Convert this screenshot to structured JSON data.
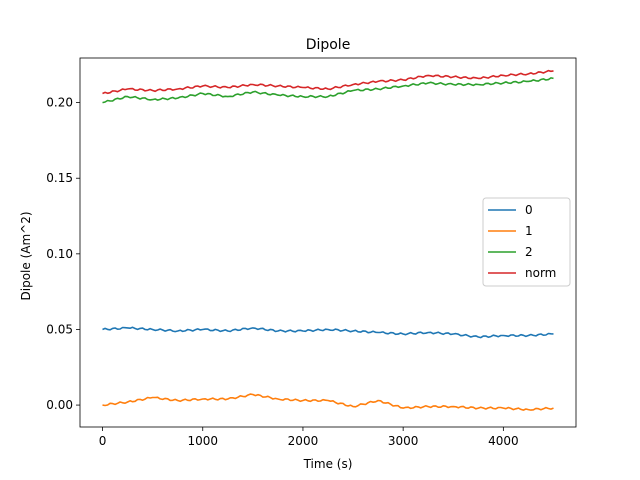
{
  "chart_data": {
    "type": "line",
    "title": "Dipole",
    "xlabel": "Time (s)",
    "ylabel": "Dipole (Am^2)",
    "xlim": [
      -225,
      4725
    ],
    "ylim": [
      -0.0145,
      0.2295
    ],
    "xticks": [
      0,
      1000,
      2000,
      3000,
      4000
    ],
    "xtick_labels": [
      "0",
      "1000",
      "2000",
      "3000",
      "4000"
    ],
    "yticks": [
      0.0,
      0.05,
      0.1,
      0.15,
      0.2
    ],
    "ytick_labels": [
      "0.00",
      "0.05",
      "0.10",
      "0.15",
      "0.20"
    ],
    "grid": false,
    "legend_position": "center-right",
    "x": [
      0,
      250,
      500,
      750,
      1000,
      1250,
      1500,
      1750,
      2000,
      2250,
      2500,
      2750,
      3000,
      3250,
      3500,
      3750,
      4000,
      4250,
      4500
    ],
    "series": [
      {
        "name": "0",
        "color": "#1f77b4",
        "values": [
          0.05,
          0.051,
          0.05,
          0.049,
          0.05,
          0.049,
          0.051,
          0.049,
          0.049,
          0.05,
          0.049,
          0.048,
          0.047,
          0.048,
          0.047,
          0.045,
          0.046,
          0.046,
          0.047
        ]
      },
      {
        "name": "1",
        "color": "#ff7f0e",
        "values": [
          0.0,
          0.002,
          0.005,
          0.003,
          0.004,
          0.004,
          0.007,
          0.004,
          0.003,
          0.003,
          -0.001,
          0.003,
          -0.002,
          -0.001,
          -0.001,
          -0.002,
          -0.002,
          -0.003,
          -0.002
        ]
      },
      {
        "name": "2",
        "color": "#2ca02c",
        "values": [
          0.2,
          0.204,
          0.202,
          0.203,
          0.206,
          0.204,
          0.207,
          0.205,
          0.204,
          0.204,
          0.208,
          0.209,
          0.211,
          0.213,
          0.212,
          0.212,
          0.213,
          0.214,
          0.216
        ]
      },
      {
        "name": "norm",
        "color": "#d62728",
        "values": [
          0.206,
          0.209,
          0.208,
          0.209,
          0.211,
          0.21,
          0.212,
          0.211,
          0.21,
          0.209,
          0.212,
          0.214,
          0.215,
          0.218,
          0.217,
          0.216,
          0.218,
          0.219,
          0.221
        ]
      }
    ]
  }
}
